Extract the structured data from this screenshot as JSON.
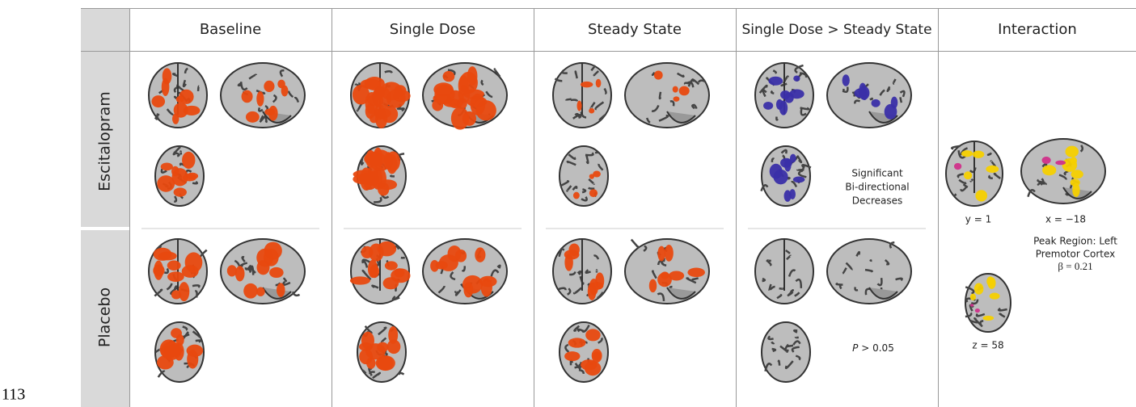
{
  "line_number": "113",
  "columns": [
    "Baseline",
    "Single Dose",
    "Steady State",
    "Single Dose > Steady State",
    "Interaction"
  ],
  "rows": [
    "Escitalopram",
    "Placebo"
  ],
  "annotations": {
    "significant": [
      "Significant",
      "Bi-directional",
      "Decreases"
    ],
    "p_symbol": "P",
    "p_rest": "> 0.05"
  },
  "interaction": {
    "y_label": "y = 1",
    "x_label": "x = −18",
    "peak": [
      "Peak Region: Left",
      "Premotor Cortex"
    ],
    "beta": "β = 0.21",
    "z_label": "z = 58"
  }
}
